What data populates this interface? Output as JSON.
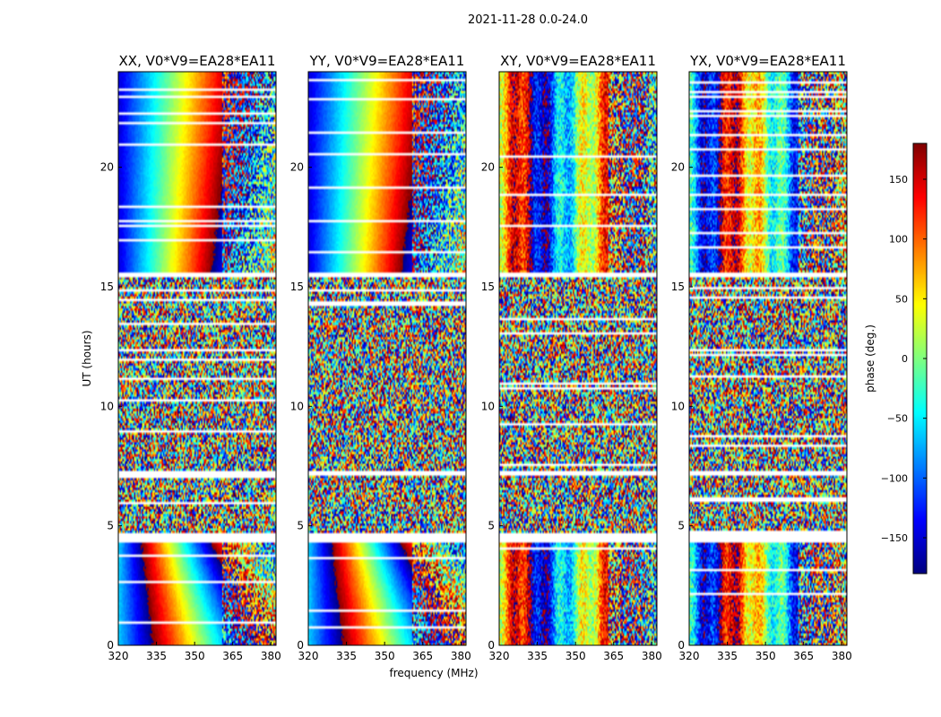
{
  "figure": {
    "suptitle": "2021-11-28 0.0-24.0"
  },
  "chart_data": {
    "type": "heatmap",
    "xlabel": "frequency (MHz)",
    "ylabel": "UT (hours)",
    "xlim": [
      320,
      382
    ],
    "ylim": [
      0,
      24
    ],
    "xticks": [
      320,
      335,
      350,
      365,
      380
    ],
    "yticks": [
      0,
      5,
      10,
      15,
      20
    ],
    "colorbar": {
      "label": "phase (deg.)",
      "range": [
        -180,
        180
      ],
      "ticks": [
        150,
        100,
        50,
        0,
        -50,
        -100,
        -150
      ],
      "tick_labels": [
        "150",
        "100",
        "50",
        "0",
        "−50",
        "−100",
        "−150"
      ],
      "colormap": "jet"
    },
    "panels": [
      {
        "title": "XX, V0*V9=EA28*EA11",
        "pol": "XX",
        "phase_model": "parallel",
        "sign": 1
      },
      {
        "title": "YY, V0*V9=EA28*EA11",
        "pol": "YY",
        "phase_model": "parallel",
        "sign": 1
      },
      {
        "title": "XY, V0*V9=EA28*EA11",
        "pol": "XY",
        "phase_model": "cross",
        "sign": 1
      },
      {
        "title": "YX, V0*V9=EA28*EA11",
        "pol": "YX",
        "phase_model": "cross",
        "sign": -1
      }
    ],
    "flagged_time_ranges_hours": [
      [
        4.35,
        4.65
      ],
      [
        7.15,
        7.35
      ],
      [
        15.45,
        15.65
      ]
    ],
    "noisy_time_range_hours": [
      4.65,
      15.45
    ],
    "clean_time_ranges_hours": [
      [
        0,
        4.35
      ],
      [
        15.65,
        24
      ]
    ]
  }
}
